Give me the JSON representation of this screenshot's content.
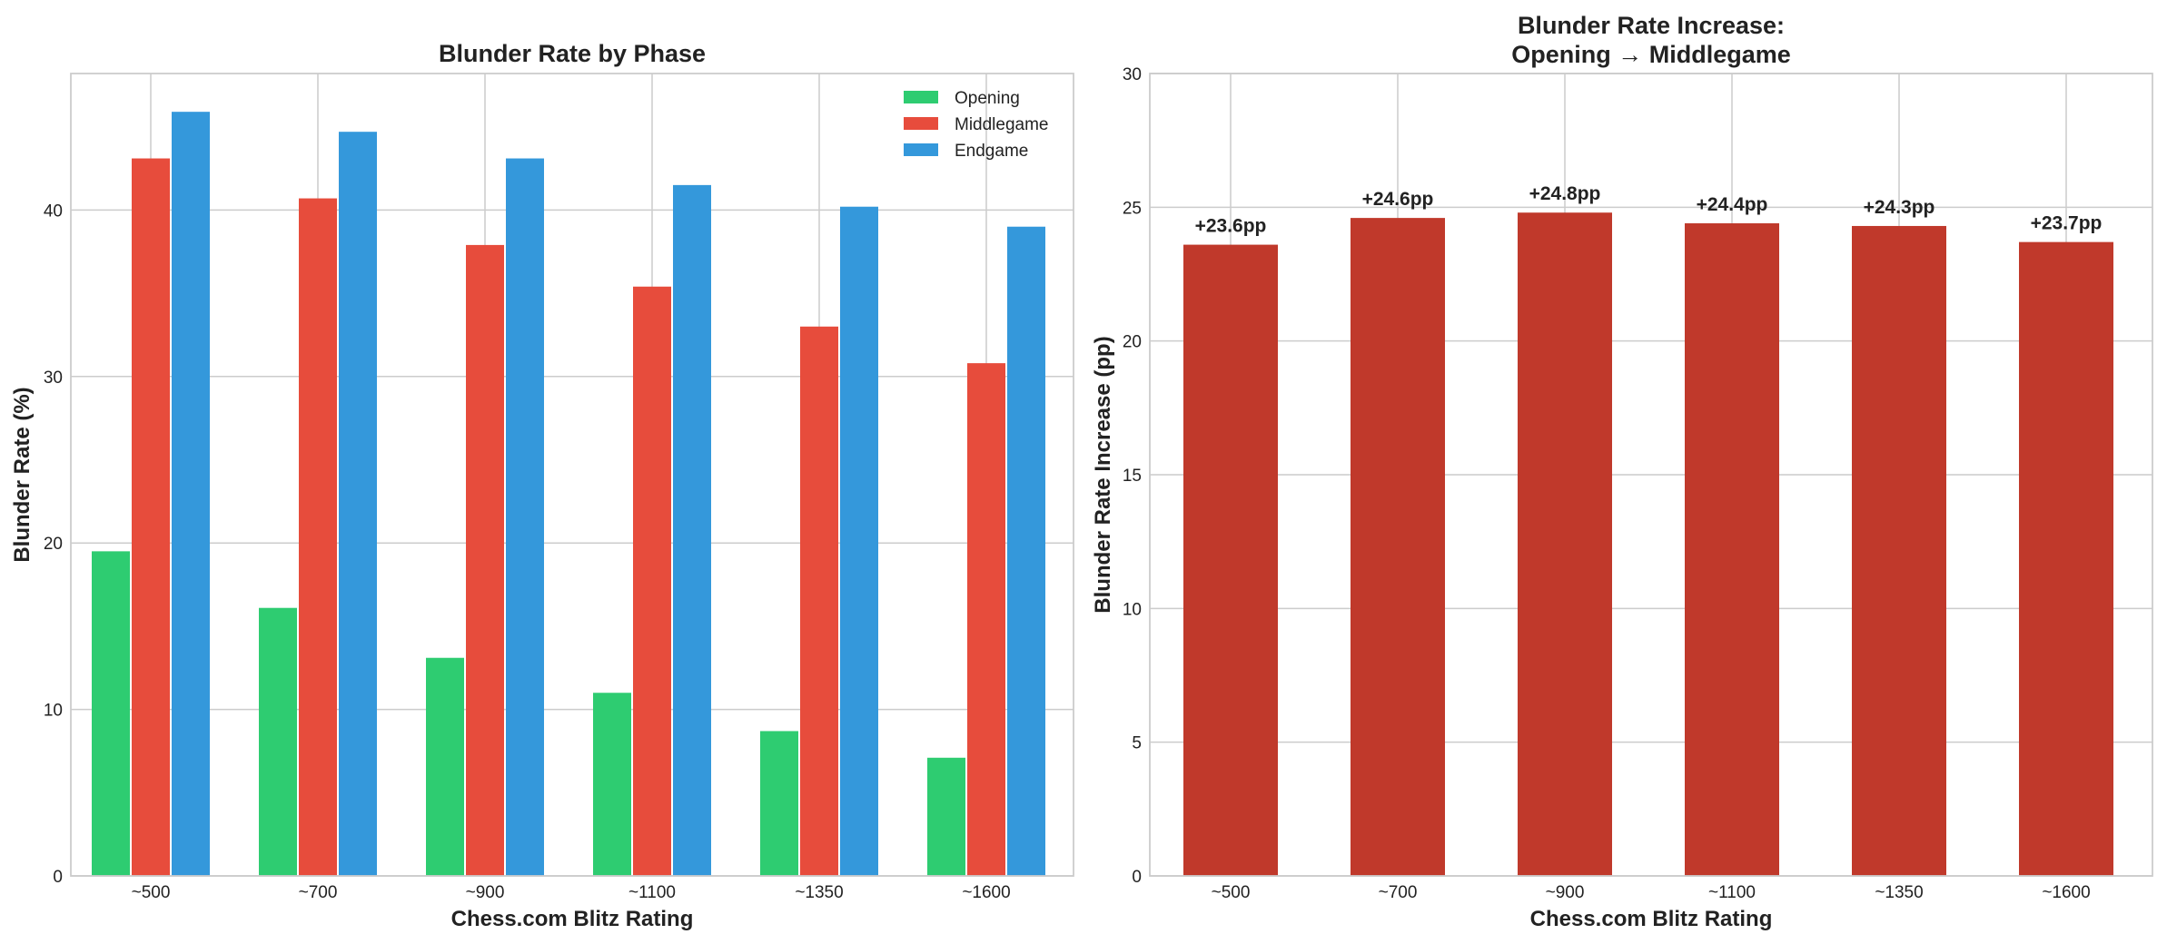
{
  "chart_data": [
    {
      "type": "bar",
      "title": "Blunder Rate by Phase",
      "xlabel": "Chess.com Blitz Rating",
      "ylabel": "Blunder Rate (%)",
      "categories": [
        "~500",
        "~700",
        "~900",
        "~1100",
        "~1350",
        "~1600"
      ],
      "ylim": [
        0,
        48.2
      ],
      "yticks": [
        0,
        10,
        20,
        30,
        40
      ],
      "grid": true,
      "legend_position": "top-right",
      "series": [
        {
          "name": "Opening",
          "color": "#2ecc71",
          "values": [
            19.5,
            16.1,
            13.1,
            11.0,
            8.7,
            7.1
          ]
        },
        {
          "name": "Middlegame",
          "color": "#e74c3c",
          "values": [
            43.1,
            40.7,
            37.9,
            35.4,
            33.0,
            30.8
          ]
        },
        {
          "name": "Endgame",
          "color": "#3498db",
          "values": [
            45.9,
            44.7,
            43.1,
            41.5,
            40.2,
            39.0
          ]
        }
      ]
    },
    {
      "type": "bar",
      "title": "Blunder Rate Increase:\nOpening → Middlegame",
      "xlabel": "Chess.com Blitz Rating",
      "ylabel": "Blunder Rate Increase (pp)",
      "categories": [
        "~500",
        "~700",
        "~900",
        "~1100",
        "~1350",
        "~1600"
      ],
      "ylim": [
        0,
        30
      ],
      "yticks": [
        0,
        5,
        10,
        15,
        20,
        25,
        30
      ],
      "grid": true,
      "series": [
        {
          "color": "#c0392b",
          "values": [
            23.6,
            24.6,
            24.8,
            24.4,
            24.3,
            23.7
          ],
          "labels": [
            "+23.6pp",
            "+24.6pp",
            "+24.8pp",
            "+24.4pp",
            "+24.3pp",
            "+23.7pp"
          ]
        }
      ]
    }
  ]
}
